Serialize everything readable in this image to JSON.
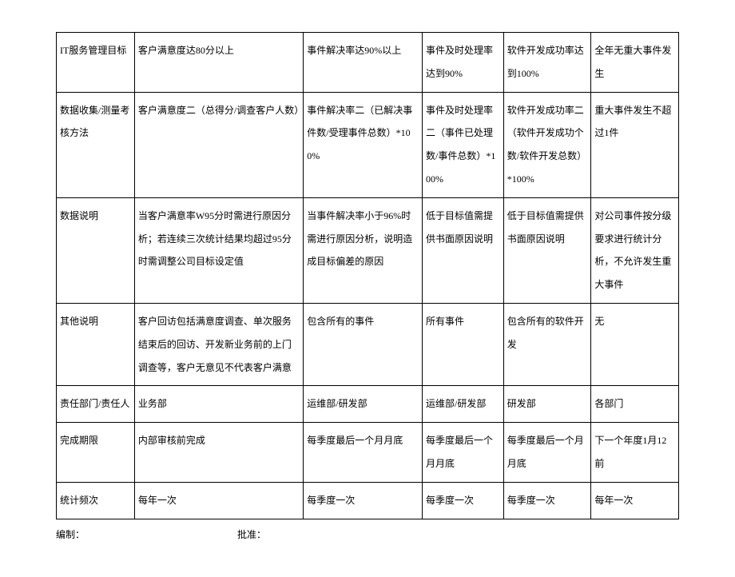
{
  "table": {
    "type": "table",
    "columns_count": 6,
    "rows": [
      {
        "label": "IT服务管理目标",
        "cells": [
          "客户满意度达80分以上",
          "事件解决率达90%以上",
          "事件及时处理率达到90%",
          "软件开发成功率达到100%",
          "全年无重大事件发生"
        ]
      },
      {
        "label": "数据收集/测量考核方法",
        "cells": [
          "客户满意度二（总得分/调查客户人数）",
          "事件解决率二（已解决事件数/受理事件总数）*100%",
          "事件及时处理率二（事件已处理数/事件总数）*100%",
          "软件开发成功率二（软件开发成功个数/软件开发总数）*100%",
          "重大事件发生不超过1件"
        ]
      },
      {
        "label": "数据说明",
        "cells": [
          "当客户满意率W95分时需进行原因分析；若连续三次统计结果均超过95分时需调整公司目标设定值",
          "当事件解决率小于96%时需进行原因分析，说明造成目标偏差的原因",
          "低于目标值需提供书面原因说明",
          "低于目标值需提供书面原因说明",
          "对公司事件按分级要求进行统计分析，不允许发生重大事件"
        ]
      },
      {
        "label": "其他说明",
        "cells": [
          "客户回访包括满意度调查、单次服务结束后的回访、开发新业务前的上门调查等，客户无意见不代表客户满意",
          "包含所有的事件",
          "所有事件",
          "包含所有的软件开发",
          "无"
        ]
      },
      {
        "label": "责任部门/责任人",
        "cells": [
          "业务部",
          "运维部/研发部",
          "运维部/研发部",
          "研发部",
          "各部门"
        ]
      },
      {
        "label": "完成期限",
        "cells": [
          "内部审核前完成",
          "每季度最后一个月月底",
          "每季度最后一个月月底",
          "每季度最后一个月月底",
          "下一个年度1月12前"
        ]
      },
      {
        "label": "统计频次",
        "cells": [
          "每年一次",
          "每季度一次",
          "每季度一次",
          "每季度一次",
          "每年一次"
        ]
      }
    ]
  },
  "footer": {
    "prepared": "编制：",
    "approved": "批准："
  },
  "style": {
    "font_size_pt": 10,
    "line_height": 2.4,
    "border_color": "#000000",
    "background_color": "#ffffff",
    "text_color": "#000000",
    "column_widths_pct": [
      12.5,
      27,
      19,
      13,
      14,
      14
    ]
  }
}
